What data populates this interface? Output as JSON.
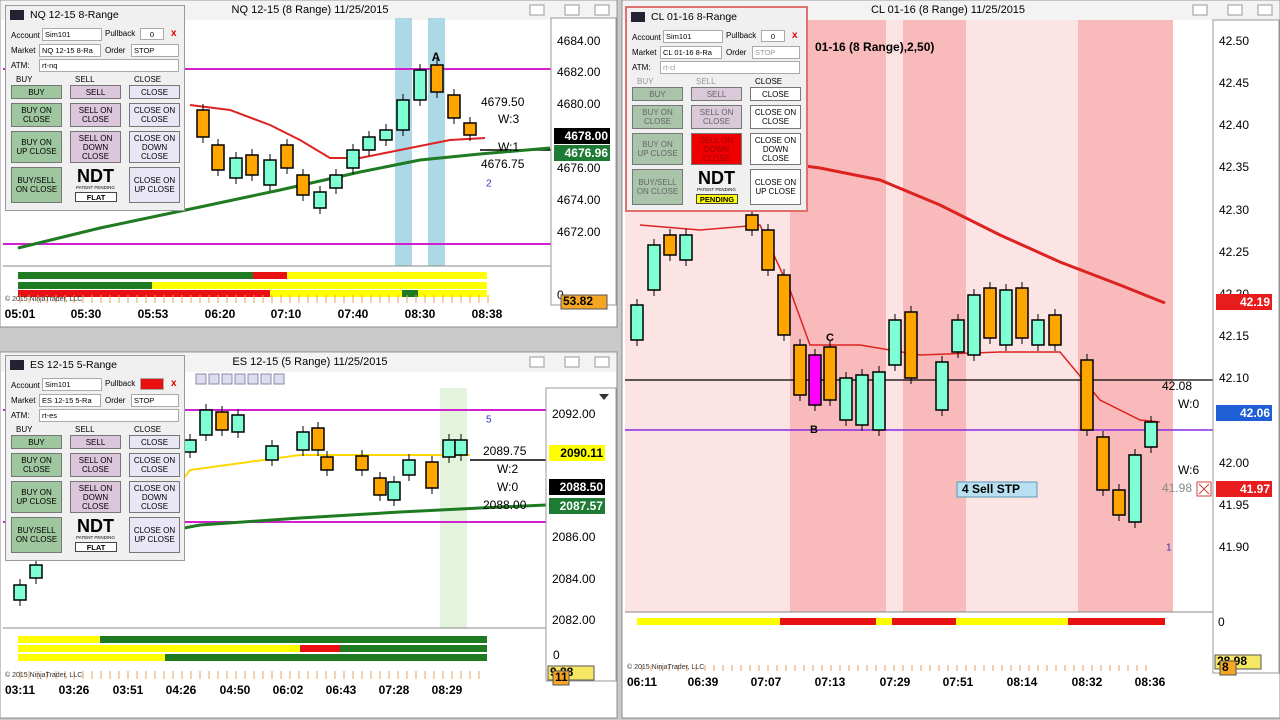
{
  "windows": [
    {
      "title": "NQ 12-15 (8 Range)  11/25/2015",
      "price_labels": [
        "4684.00",
        "4682.00",
        "4680.00",
        "4676.00",
        "4674.00",
        "4672.00"
      ],
      "price_boxes": [
        {
          "text": "4678.00",
          "color": "#000000",
          "text_color": "#ffffff"
        },
        {
          "text": "4676.96",
          "color": "#1e7b34",
          "text_color": "#ffffff"
        }
      ],
      "indicator_labels": [
        "0",
        "53.82"
      ],
      "times": [
        "05:01",
        "05:30",
        "05:53",
        "06:20",
        "07:10",
        "07:40",
        "08:30",
        "08:38"
      ],
      "annotations": [
        "A",
        "4679.50",
        "W:3",
        "W:1",
        "4676.75",
        "2"
      ],
      "copyright": "© 2015 NinjaTrader, LLC"
    },
    {
      "title": "ES 12-15 (5 Range)  11/25/2015",
      "price_labels": [
        "2092.00",
        "2086.00",
        "2084.00",
        "2082.00"
      ],
      "price_boxes": [
        {
          "text": "2090.11",
          "color": "#ffff00",
          "text_color": "#000000"
        },
        {
          "text": "2088.50",
          "color": "#000000",
          "text_color": "#ffffff"
        },
        {
          "text": "2087.57",
          "color": "#1e7b34",
          "text_color": "#ffffff"
        }
      ],
      "indicator_labels": [
        "0",
        "9.88",
        "11"
      ],
      "times": [
        "03:11",
        "03:26",
        "03:51",
        "04:26",
        "04:50",
        "06:02",
        "06:43",
        "07:28",
        "08:29"
      ],
      "annotations": [
        "5",
        "2089.75",
        "W:2",
        "W:0",
        "2088.00"
      ],
      "copyright": "© 2015 NinjaTrader, LLC"
    },
    {
      "title": "CL 01-16 (8 Range)  11/25/2015",
      "price_labels": [
        "42.50",
        "42.45",
        "42.40",
        "42.35",
        "42.30",
        "42.25",
        "42.20",
        "42.15",
        "42.10",
        "42.00",
        "41.95",
        "41.90"
      ],
      "price_boxes": [
        {
          "text": "42.19",
          "color": "#e81c1c",
          "text_color": "#ffffff"
        },
        {
          "text": "42.06",
          "color": "#1f5fd6",
          "text_color": "#ffffff"
        },
        {
          "text": "41.97",
          "color": "#e81c1c",
          "text_color": "#ffffff"
        }
      ],
      "indicator_labels": [
        "0",
        "28.98",
        "8"
      ],
      "times": [
        "06:11",
        "06:39",
        "07:07",
        "07:13",
        "07:29",
        "07:51",
        "08:14",
        "08:32",
        "08:36"
      ],
      "annotations": [
        "01-16 (8 Range),2,50)",
        "C",
        "B",
        "42.08",
        "W:0",
        "W:6",
        "41.98",
        "4  Sell STP",
        "1"
      ],
      "copyright": "© 2015 NinjaTrader, LLC"
    }
  ],
  "panels": [
    {
      "title": "NQ 12-15 8-Range",
      "account_label": "Account",
      "account": "Sim101",
      "pullback_label": "Pullback",
      "pullback": "0",
      "close_x": "x",
      "market_label": "Market",
      "market": "NQ 12-15 8-Ra",
      "order_label": "Order",
      "order": "STOP",
      "atm_label": "ATM:",
      "atm": "rt-nq",
      "headings": [
        "BUY",
        "SELL",
        "CLOSE"
      ],
      "buttons": [
        "BUY",
        "SELL",
        "CLOSE",
        "BUY ON CLOSE",
        "SELL ON CLOSE",
        "CLOSE ON CLOSE",
        "BUY ON UP CLOSE",
        "SELL ON DOWN CLOSE",
        "CLOSE ON DOWN CLOSE",
        "BUY/SELL ON CLOSE",
        "CLOSE ON UP CLOSE"
      ],
      "logo": "NDT",
      "logo_sub": "PATENT PENDING",
      "status": "FLAT"
    },
    {
      "title": "ES 12-15 5-Range",
      "account_label": "Account",
      "account": "Sim101",
      "pullback_label": "Pullback",
      "close_x": "x",
      "market_label": "Market",
      "market": "ES 12-15 5-Ra",
      "order_label": "Order",
      "order": "STOP",
      "atm_label": "ATM:",
      "atm": "rt-es",
      "headings": [
        "BUY",
        "SELL",
        "CLOSE"
      ],
      "buttons": [
        "BUY",
        "SELL",
        "CLOSE",
        "BUY ON CLOSE",
        "SELL ON CLOSE",
        "CLOSE ON CLOSE",
        "BUY ON UP CLOSE",
        "SELL ON DOWN CLOSE",
        "CLOSE ON DOWN CLOSE",
        "BUY/SELL ON CLOSE",
        "CLOSE ON UP CLOSE"
      ],
      "logo": "NDT",
      "logo_sub": "PATENT PENDING",
      "status": "FLAT"
    },
    {
      "title": "CL 01-16 8-Range",
      "account_label": "Account",
      "account": "Sim101",
      "pullback_label": "Pullback",
      "pullback": "0",
      "close_x": "x",
      "market_label": "Market",
      "market": "CL 01-16 8-Ra",
      "order_label": "Order",
      "order": "STOP",
      "atm_label": "ATM:",
      "atm": "rt-cl",
      "headings": [
        "BUY",
        "SELL",
        "CLOSE"
      ],
      "buttons": [
        "BUY",
        "SELL",
        "CLOSE",
        "BUY ON CLOSE",
        "SELL ON CLOSE",
        "CLOSE ON CLOSE",
        "BUY ON UP CLOSE",
        "SELL ON DOWN CLOSE",
        "CLOSE ON DOWN CLOSE",
        "BUY/SELL ON CLOSE",
        "CLOSE ON UP CLOSE"
      ],
      "logo": "NDT",
      "logo_sub": "PATENT PENDING",
      "status": "PENDING"
    }
  ]
}
